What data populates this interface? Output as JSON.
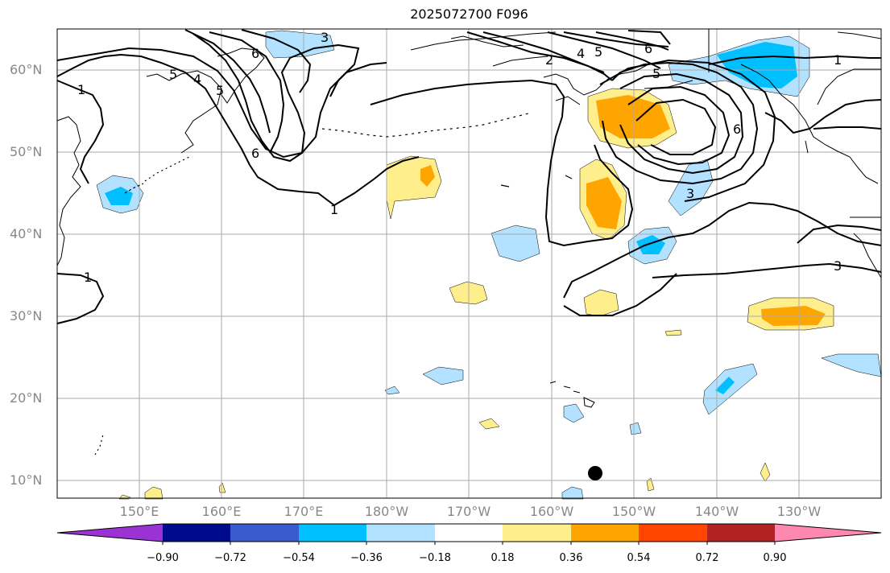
{
  "title": "2025072700 F096",
  "lat_labels": [
    "60°N",
    "50°N",
    "40°N",
    "30°N",
    "20°N",
    "10°N"
  ],
  "lon_labels": [
    "150°E",
    "160°E",
    "170°E",
    "180°W",
    "170°W",
    "160°W",
    "150°W",
    "140°W",
    "130°W"
  ],
  "colorbar": {
    "ticks": [
      "−0.90",
      "−0.72",
      "−0.54",
      "−0.36",
      "−0.18",
      "0.18",
      "0.36",
      "0.54",
      "0.72",
      "0.90"
    ],
    "colors": [
      "#9b33d4",
      "#000a8c",
      "#3a5bce",
      "#00bfff",
      "#b2e2ff",
      "#ffffff",
      "#ffee8c",
      "#ffa500",
      "#ff4500",
      "#b22222",
      "#ff88b0"
    ]
  },
  "contour_labels": [
    "1",
    "2",
    "3",
    "4",
    "5",
    "6"
  ],
  "colors": {
    "light_blue": "#b2e2ff",
    "blue": "#00bfff",
    "yellow": "#ffee8c",
    "orange": "#ffa500"
  }
}
